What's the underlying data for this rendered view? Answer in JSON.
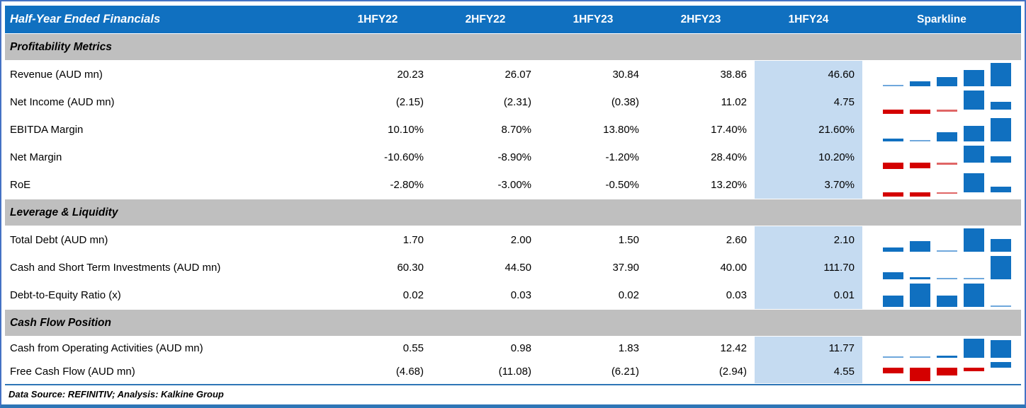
{
  "header": {
    "title": "Half-Year Ended Financials",
    "periods": [
      "1HFY22",
      "2HFY22",
      "1HFY23",
      "2HFY23",
      "1HFY24"
    ],
    "sparkline_label": "Sparkline",
    "highlighted_period": "1HFY24"
  },
  "sections": [
    {
      "title": "Profitability Metrics",
      "rows": [
        {
          "label": "Revenue (AUD mn)",
          "values": [
            "20.23",
            "26.07",
            "30.84",
            "38.86",
            "46.60"
          ],
          "numeric": [
            20.23,
            26.07,
            30.84,
            38.86,
            46.6
          ]
        },
        {
          "label": "Net Income (AUD mn)",
          "values": [
            "(2.15)",
            "(2.31)",
            "(0.38)",
            "11.02",
            "4.75"
          ],
          "numeric": [
            -2.15,
            -2.31,
            -0.38,
            11.02,
            4.75
          ]
        },
        {
          "label": "EBITDA Margin",
          "values": [
            "10.10%",
            "8.70%",
            "13.80%",
            "17.40%",
            "21.60%"
          ],
          "numeric": [
            10.1,
            8.7,
            13.8,
            17.4,
            21.6
          ]
        },
        {
          "label": "Net Margin",
          "values": [
            "-10.60%",
            "-8.90%",
            "-1.20%",
            "28.40%",
            "10.20%"
          ],
          "numeric": [
            -10.6,
            -8.9,
            -1.2,
            28.4,
            10.2
          ]
        },
        {
          "label": "RoE",
          "values": [
            "-2.80%",
            "-3.00%",
            "-0.50%",
            "13.20%",
            "3.70%"
          ],
          "numeric": [
            -2.8,
            -3.0,
            -0.5,
            13.2,
            3.7
          ]
        }
      ]
    },
    {
      "title": "Leverage & Liquidity",
      "rows": [
        {
          "label": "Total Debt (AUD mn)",
          "values": [
            "1.70",
            "2.00",
            "1.50",
            "2.60",
            "2.10"
          ],
          "numeric": [
            1.7,
            2.0,
            1.5,
            2.6,
            2.1
          ]
        },
        {
          "label": "Cash and Short Term Investments (AUD mn)",
          "values": [
            "60.30",
            "44.50",
            "37.90",
            "40.00",
            "111.70"
          ],
          "numeric": [
            60.3,
            44.5,
            37.9,
            40.0,
            111.7
          ]
        },
        {
          "label": "Debt-to-Equity Ratio (x)",
          "values": [
            "0.02",
            "0.03",
            "0.02",
            "0.03",
            "0.01"
          ],
          "numeric": [
            0.02,
            0.03,
            0.02,
            0.03,
            0.01
          ]
        }
      ]
    },
    {
      "title": "Cash Flow Position",
      "rows": [
        {
          "label": "Cash from Operating Activities (AUD mn)",
          "values": [
            "0.55",
            "0.98",
            "1.83",
            "12.42",
            "11.77"
          ],
          "numeric": [
            0.55,
            0.98,
            1.83,
            12.42,
            11.77
          ]
        },
        {
          "label": "Free Cash Flow (AUD mn)",
          "values": [
            "(4.68)",
            "(11.08)",
            "(6.21)",
            "(2.94)",
            "4.55"
          ],
          "numeric": [
            -4.68,
            -11.08,
            -6.21,
            -2.94,
            4.55
          ]
        }
      ]
    }
  ],
  "footer": {
    "text": "Data Source: REFINITIV; Analysis: Kalkine Group"
  },
  "colors": {
    "header_blue": "#1070C0",
    "band_gray": "#BFBFBF",
    "highlight_blue": "#C5DBF1",
    "frame_blue": "#4472C4",
    "rule_blue": "#2E75B6",
    "spark_pos": "#1070C0",
    "spark_pos_light": "#6FA8DC",
    "spark_neg": "#D40000",
    "spark_neg_light": "#E06666"
  },
  "chart_data": {
    "type": "table",
    "title": "Half-Year Ended Financials",
    "columns": [
      "1HFY22",
      "2HFY22",
      "1HFY23",
      "2HFY23",
      "1HFY24",
      "Sparkline"
    ],
    "sparkline_type": "bar",
    "series": [
      {
        "name": "Revenue (AUD mn)",
        "values": [
          20.23,
          26.07,
          30.84,
          38.86,
          46.6
        ]
      },
      {
        "name": "Net Income (AUD mn)",
        "values": [
          -2.15,
          -2.31,
          -0.38,
          11.02,
          4.75
        ]
      },
      {
        "name": "EBITDA Margin (%)",
        "values": [
          10.1,
          8.7,
          13.8,
          17.4,
          21.6
        ]
      },
      {
        "name": "Net Margin (%)",
        "values": [
          -10.6,
          -8.9,
          -1.2,
          28.4,
          10.2
        ]
      },
      {
        "name": "RoE (%)",
        "values": [
          -2.8,
          -3.0,
          -0.5,
          13.2,
          3.7
        ]
      },
      {
        "name": "Total Debt (AUD mn)",
        "values": [
          1.7,
          2.0,
          1.5,
          2.6,
          2.1
        ]
      },
      {
        "name": "Cash and Short Term Investments (AUD mn)",
        "values": [
          60.3,
          44.5,
          37.9,
          40.0,
          111.7
        ]
      },
      {
        "name": "Debt-to-Equity Ratio (x)",
        "values": [
          0.02,
          0.03,
          0.02,
          0.03,
          0.01
        ]
      },
      {
        "name": "Cash from Operating Activities (AUD mn)",
        "values": [
          0.55,
          0.98,
          1.83,
          12.42,
          11.77
        ]
      },
      {
        "name": "Free Cash Flow (AUD mn)",
        "values": [
          -4.68,
          -11.08,
          -6.21,
          -2.94,
          4.55
        ]
      }
    ],
    "legend_position": "none",
    "grid": false
  }
}
